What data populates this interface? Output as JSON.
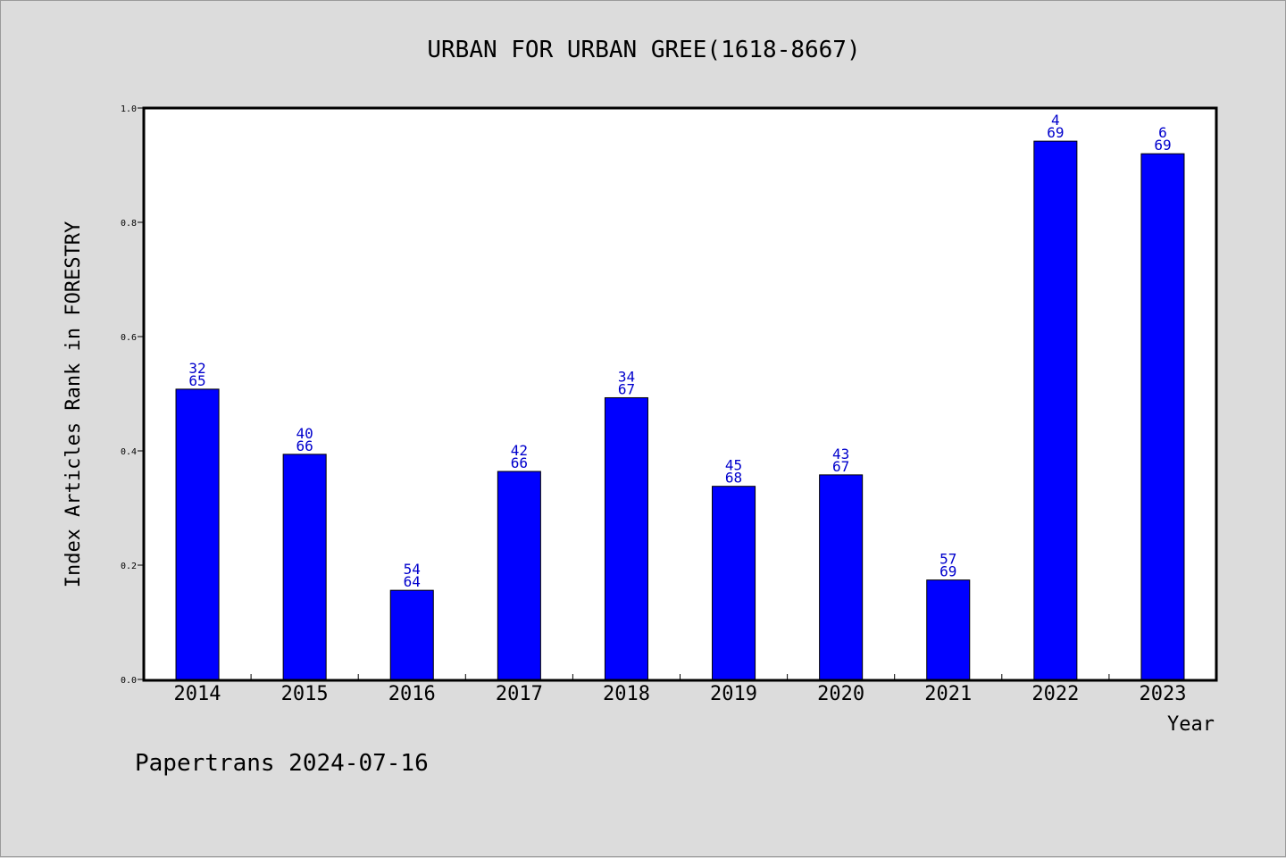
{
  "colors": {
    "bar": "#0000ff",
    "bar_border": "#000000",
    "data_label": "#0000cc",
    "background": "#dcdcdc",
    "plot_background": "#ffffff"
  },
  "footer": "Papertrans 2024-07-16",
  "chart_data": {
    "type": "bar",
    "title": "URBAN FOR URBAN GREE(1618-8667)",
    "xlabel": "Year",
    "ylabel": "Index Articles Rank in FORESTRY",
    "ylim": [
      0.0,
      1.0
    ],
    "yticks": [
      "0.0",
      "0.2",
      "0.4",
      "0.6",
      "0.8",
      "1.0"
    ],
    "grid": false,
    "categories": [
      "2014",
      "2015",
      "2016",
      "2017",
      "2018",
      "2019",
      "2020",
      "2021",
      "2022",
      "2023"
    ],
    "values": [
      0.508,
      0.394,
      0.156,
      0.364,
      0.493,
      0.338,
      0.358,
      0.174,
      0.942,
      0.92
    ],
    "rank": [
      "32",
      "40",
      "54",
      "42",
      "34",
      "45",
      "43",
      "57",
      "4",
      "6"
    ],
    "total": [
      "65",
      "66",
      "64",
      "66",
      "67",
      "68",
      "67",
      "69",
      "69",
      "69"
    ]
  }
}
